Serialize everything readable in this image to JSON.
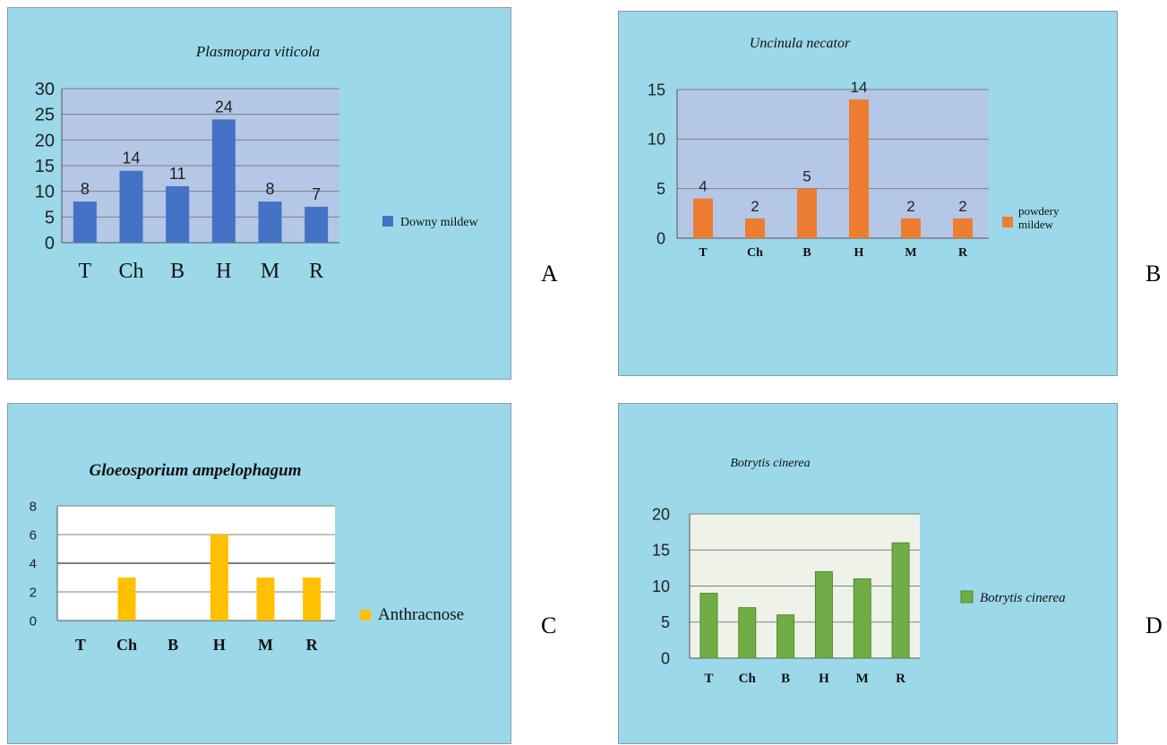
{
  "panel_letters": [
    "A",
    "B",
    "C",
    "D"
  ],
  "chart_data": [
    {
      "id": "A",
      "type": "bar",
      "title": "Plasmopara viticola",
      "categories": [
        "T",
        "Ch",
        "B",
        "H",
        "M",
        "R"
      ],
      "series": [
        {
          "name": "Downy mildew",
          "values": [
            8,
            14,
            11,
            24,
            8,
            7
          ]
        }
      ],
      "data_labels": [
        "8",
        "14",
        "11",
        "24",
        "8",
        "7"
      ],
      "ylim": [
        0,
        30
      ],
      "yticks": [
        "0",
        "5",
        "10",
        "15",
        "20",
        "25",
        "30"
      ],
      "grid": true,
      "legend": "right",
      "colors": {
        "bar": "#4472c4",
        "plot_bg": "#b4c7e7",
        "panel_bg": "#9bd8e9"
      }
    },
    {
      "id": "B",
      "type": "bar",
      "title": "Uncinula necator",
      "categories": [
        "T",
        "Ch",
        "B",
        "H",
        "M",
        "R"
      ],
      "series": [
        {
          "name": "powdery mildew",
          "values": [
            4,
            2,
            5,
            14,
            2,
            2
          ]
        }
      ],
      "data_labels": [
        "4",
        "2",
        "5",
        "14",
        "2",
        "2"
      ],
      "ylim": [
        0,
        15
      ],
      "yticks": [
        "0",
        "5",
        "10",
        "15"
      ],
      "grid": true,
      "legend": "right",
      "colors": {
        "bar": "#ed7d31",
        "plot_bg": "#b4c7e7",
        "panel_bg": "#9bd8e9"
      }
    },
    {
      "id": "C",
      "type": "bar",
      "title": "Gloeosporium ampelophagum",
      "categories": [
        "T",
        "Ch",
        "B",
        "H",
        "M",
        "R"
      ],
      "series": [
        {
          "name": "Anthracnose",
          "values": [
            0,
            3,
            0,
            6,
            3,
            3
          ]
        }
      ],
      "data_labels": [],
      "ylim": [
        0,
        8
      ],
      "yticks": [
        "0",
        "2",
        "4",
        "6",
        "8"
      ],
      "grid": true,
      "legend": "right",
      "colors": {
        "bar": "#ffc000",
        "plot_bg": "#ffffff",
        "panel_bg": "#9bd8e9"
      }
    },
    {
      "id": "D",
      "type": "bar",
      "title": "Botrytis cinerea",
      "categories": [
        "T",
        "Ch",
        "B",
        "H",
        "M",
        "R"
      ],
      "series": [
        {
          "name": "Botrytis cinerea",
          "values": [
            9,
            7,
            6,
            12,
            11,
            16
          ]
        }
      ],
      "data_labels": [],
      "ylim": [
        0,
        20
      ],
      "yticks": [
        "0",
        "5",
        "10",
        "15",
        "20"
      ],
      "grid": true,
      "legend": "right",
      "colors": {
        "bar": "#70ad47",
        "plot_bg": "#eef2e8",
        "panel_bg": "#9bd8e9"
      }
    }
  ]
}
